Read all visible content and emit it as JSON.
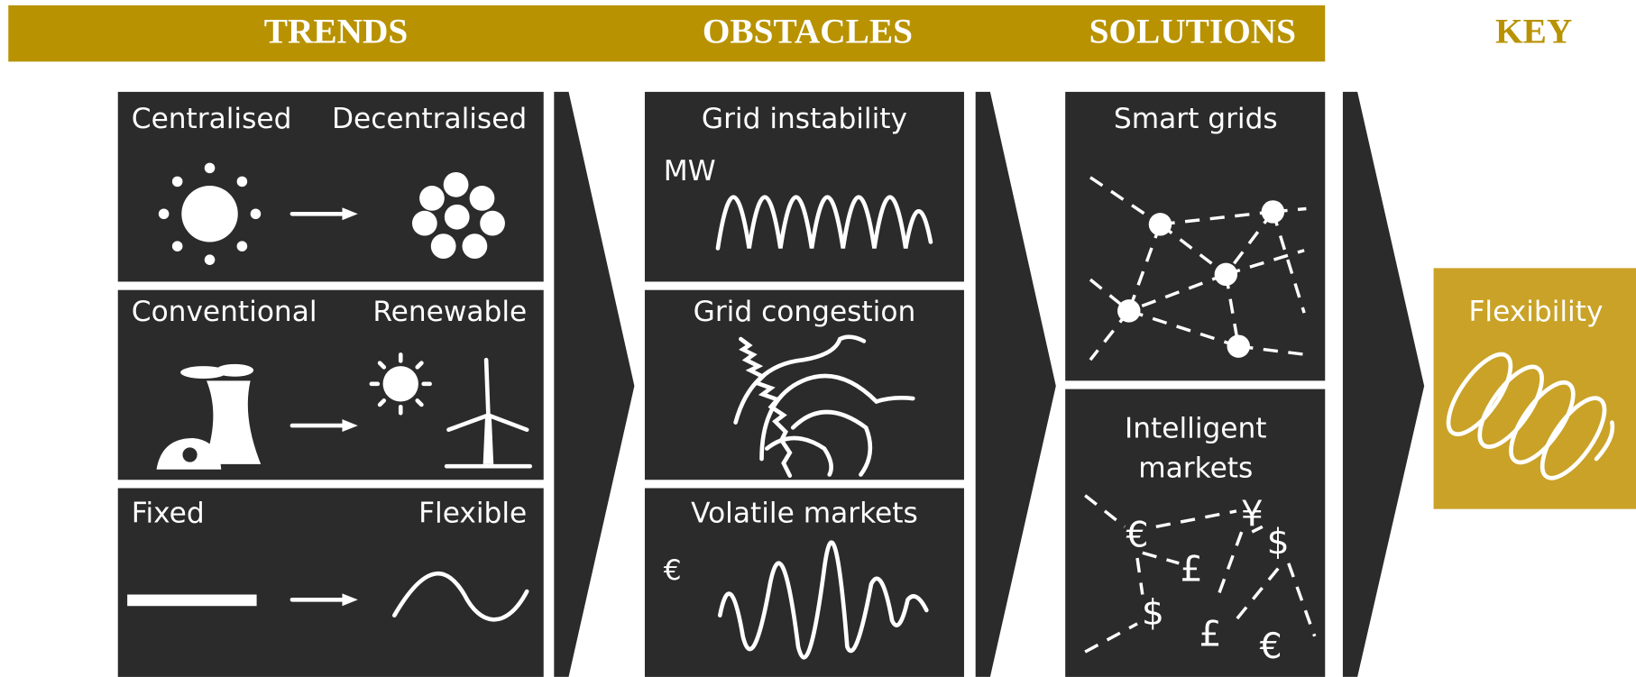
{
  "header": {
    "trends": "TRENDS",
    "obstacles": "OBSTACLES",
    "solutions": "SOLUTIONS",
    "key": "KEY"
  },
  "trends": [
    {
      "from": "Centralised",
      "to": "Decentralised"
    },
    {
      "from": "Conventional",
      "to": "Renewable"
    },
    {
      "from": "Fixed",
      "to": "Flexible"
    }
  ],
  "obstacles": [
    {
      "label": "Grid instability",
      "axis": "MW"
    },
    {
      "label": "Grid congestion"
    },
    {
      "label": "Volatile markets",
      "axis": "€"
    }
  ],
  "solutions": [
    {
      "label": "Smart grids"
    },
    {
      "lines": [
        "Intelligent",
        "markets"
      ],
      "currencies": [
        "€",
        "¥",
        "$",
        "£",
        "$",
        "£",
        "€"
      ]
    }
  ],
  "key": {
    "label": "Flexibility"
  }
}
